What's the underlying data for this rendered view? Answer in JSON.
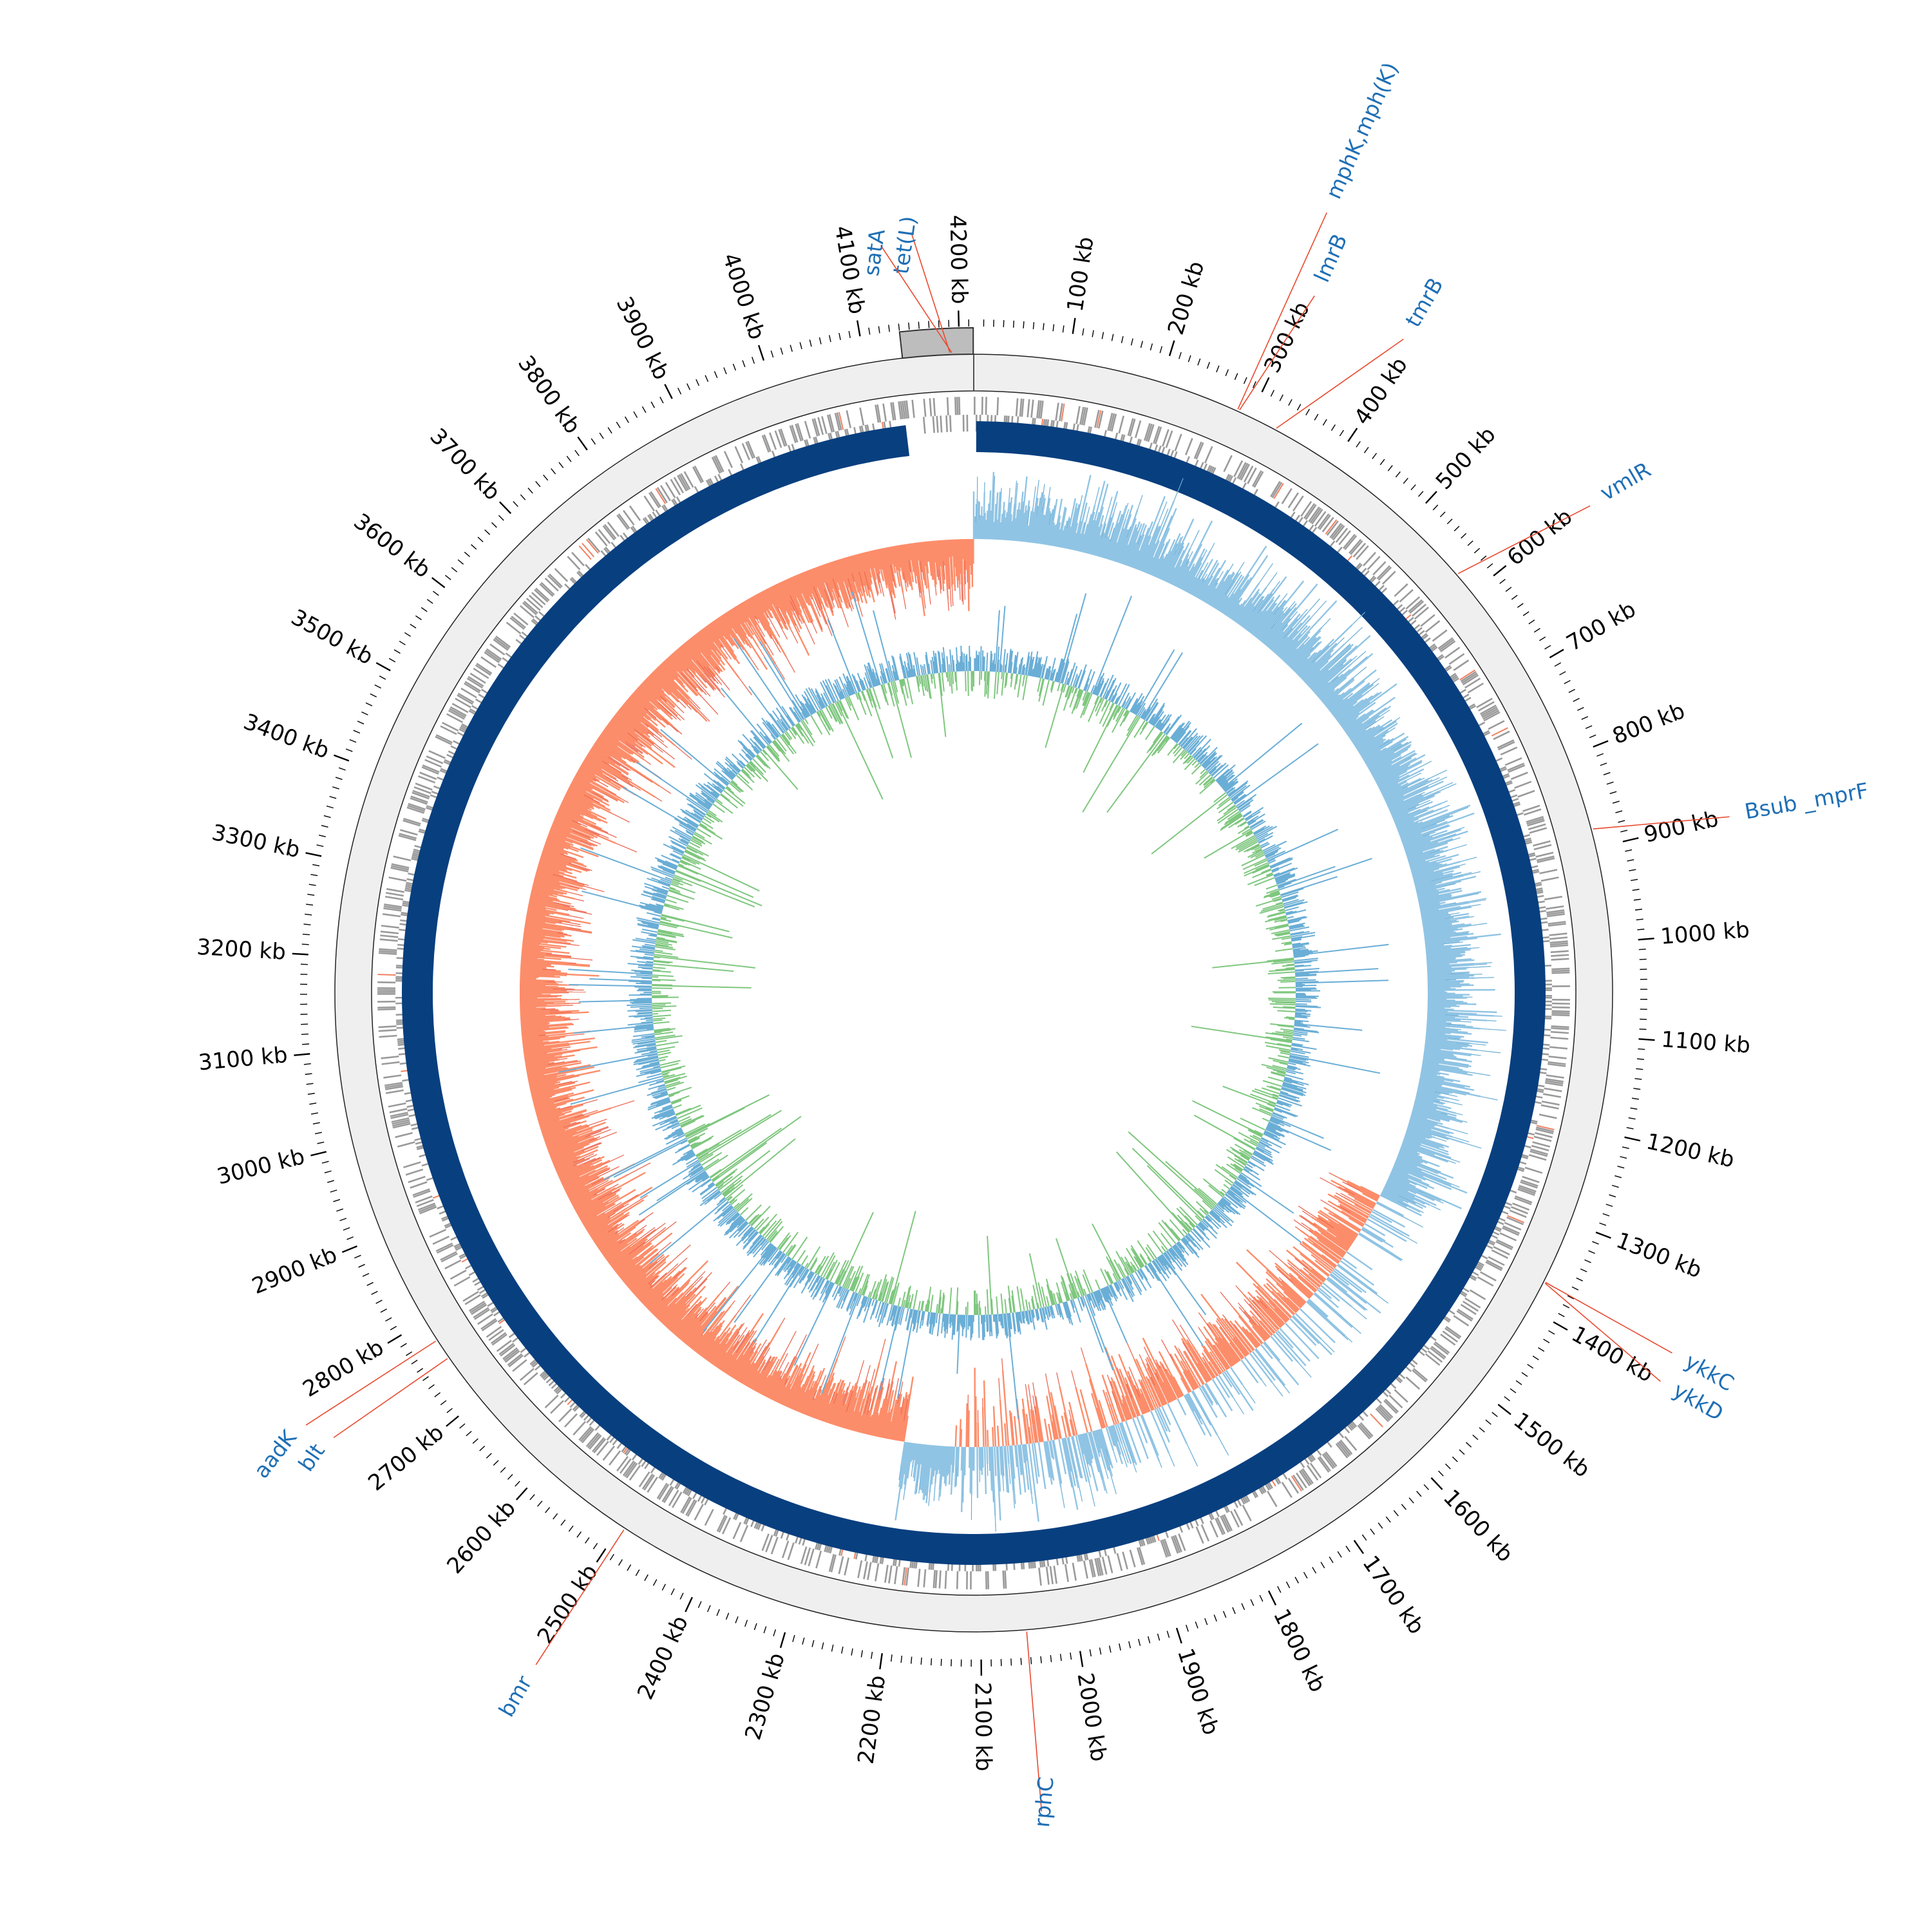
{
  "genome": {
    "length_kb": 4215,
    "gap_start_kb": 4140,
    "tick_interval_kb": 100,
    "minor_tick_interval_kb": 10,
    "tick_labels": [
      "100 kb",
      "200 kb",
      "300 kb",
      "400 kb",
      "500 kb",
      "600 kb",
      "700 kb",
      "800 kb",
      "900 kb",
      "1000 kb",
      "1100 kb",
      "1200 kb",
      "1300 kb",
      "1400 kb",
      "1500 kb",
      "1600 kb",
      "1700 kb",
      "1800 kb",
      "1900 kb",
      "2000 kb",
      "2100 kb",
      "2200 kb",
      "2300 kb",
      "2400 kb",
      "2500 kb",
      "2600 kb",
      "2700 kb",
      "2800 kb",
      "2900 kb",
      "3000 kb",
      "3100 kb",
      "3200 kb",
      "3300 kb",
      "3400 kb",
      "3500 kb",
      "3600 kb",
      "3700 kb",
      "3800 kb",
      "3900 kb",
      "4000 kb",
      "4100 kb",
      "4200 kb"
    ]
  },
  "genes": [
    {
      "name": "tet(L)",
      "kb": 4190
    },
    {
      "name": "satA",
      "kb": 4192
    },
    {
      "name": "mphK,mph(K)",
      "kb": 285
    },
    {
      "name": "lmrB",
      "kb": 287
    },
    {
      "name": "tmrB",
      "kb": 330
    },
    {
      "name": "vmlR",
      "kb": 575
    },
    {
      "name": "Bsub _mprF",
      "kb": 880
    },
    {
      "name": "ykkC",
      "kb": 1368
    },
    {
      "name": "ykkD",
      "kb": 1369
    },
    {
      "name": "rphC",
      "kb": 2052
    },
    {
      "name": "bmr",
      "kb": 2495
    },
    {
      "name": "blt",
      "kb": 2754
    },
    {
      "name": "aadK",
      "kb": 2776
    }
  ],
  "colors": {
    "backbone": "#efefef",
    "backbone_gap": "#bdbdbd",
    "features": "#9a9a9a",
    "feature_highlight": "#f08060",
    "blast_ring": "#083f7f",
    "gc_skew_positive": "#90c4e4",
    "gc_skew_negative": "#fc8d6a",
    "gc_content_positive": "#6aaed6",
    "gc_content_negative": "#7fc77f",
    "gene_label": "#1f6fb5",
    "gene_line": "#e84a2f"
  }
}
